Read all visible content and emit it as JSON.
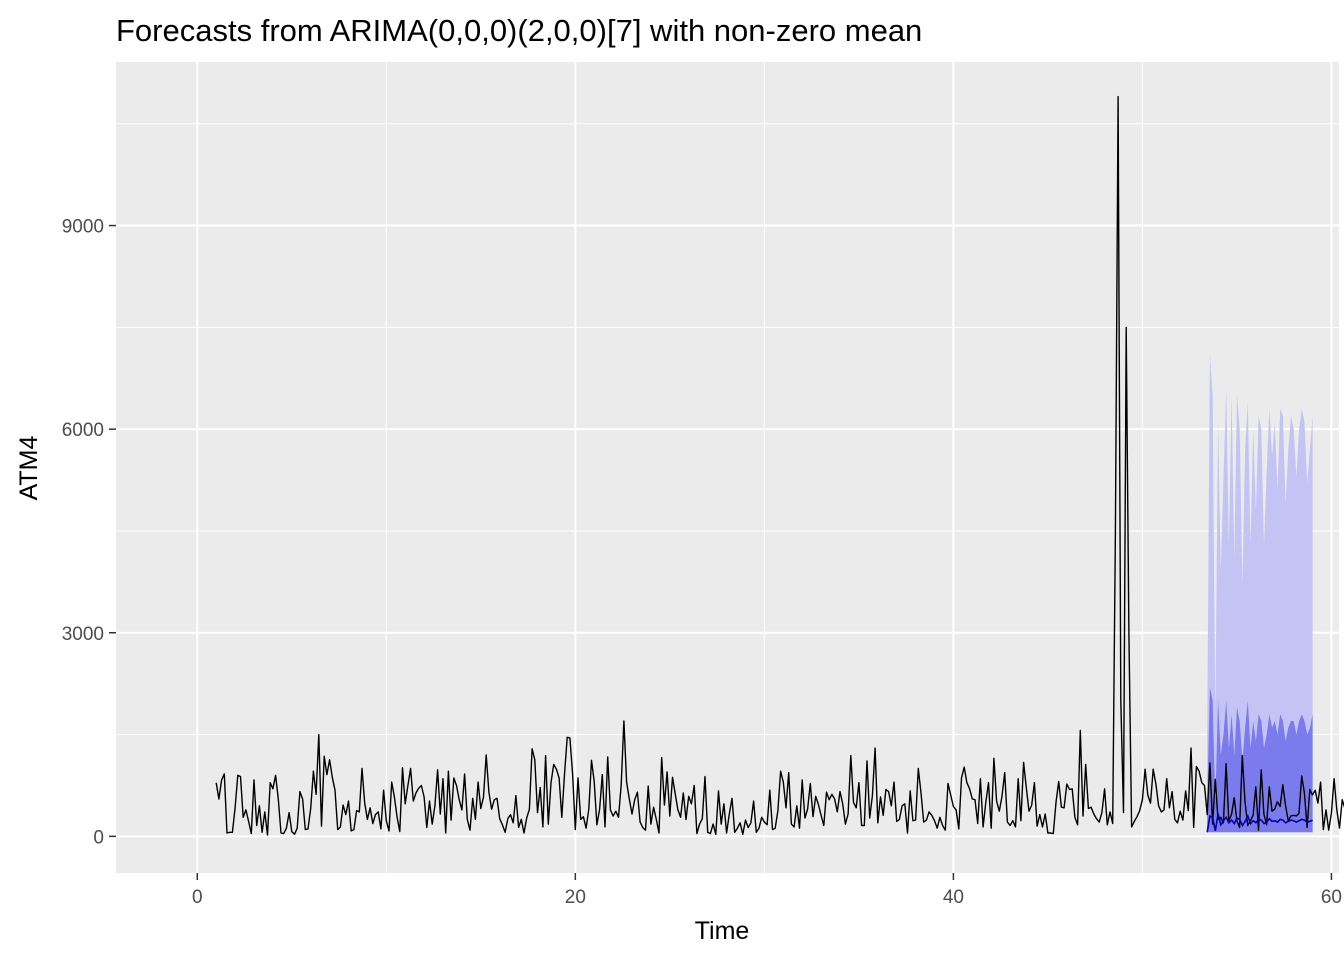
{
  "chart_data": {
    "type": "line",
    "title": "Forecasts from ARIMA(0,0,0)(2,0,0)[7] with non-zero mean",
    "xlabel": "Time",
    "ylabel": "ATM4",
    "xlim": [
      -4.3,
      60.4
    ],
    "ylim": [
      -540,
      11410
    ],
    "x_ticks": [
      0,
      20,
      40,
      60
    ],
    "x_tick_labels": [
      "0",
      "20",
      "40",
      "60"
    ],
    "y_ticks": [
      0,
      3000,
      6000,
      9000
    ],
    "y_tick_labels": [
      "0",
      "3000",
      "6000",
      "9000"
    ],
    "grid": true,
    "legend": "none",
    "frequency": 7,
    "history": {
      "start": 1.0,
      "values": [
        790,
        550,
        830,
        920,
        50,
        60,
        60,
        420,
        900,
        880,
        280,
        390,
        220,
        40,
        830,
        160,
        450,
        60,
        360,
        20,
        790,
        700,
        900,
        550,
        50,
        40,
        120,
        350,
        70,
        30,
        120,
        660,
        550,
        100,
        110,
        410,
        960,
        620,
        1500,
        150,
        1180,
        910,
        1130,
        870,
        680,
        100,
        140,
        460,
        320,
        520,
        80,
        100,
        380,
        360,
        1000,
        490,
        250,
        420,
        190,
        320,
        360,
        110,
        680,
        230,
        80,
        800,
        580,
        280,
        70,
        1010,
        480,
        750,
        1000,
        520,
        640,
        710,
        750,
        580,
        130,
        520,
        180,
        450,
        980,
        330,
        850,
        50,
        960,
        240,
        860,
        750,
        540,
        390,
        920,
        250,
        90,
        560,
        250,
        800,
        410,
        580,
        1200,
        650,
        400,
        540,
        560,
        260,
        170,
        60,
        260,
        320,
        200,
        600,
        130,
        250,
        50,
        270,
        400,
        1290,
        1130,
        350,
        720,
        140,
        1190,
        180,
        790,
        1060,
        990,
        860,
        280,
        910,
        1460,
        1450,
        920,
        100,
        860,
        250,
        290,
        120,
        400,
        1120,
        810,
        170,
        400,
        910,
        140,
        1170,
        390,
        300,
        370,
        280,
        760,
        1700,
        800,
        550,
        330,
        540,
        650,
        210,
        130,
        90,
        740,
        180,
        430,
        250,
        50,
        1160,
        460,
        950,
        300,
        870,
        630,
        390,
        280,
        640,
        250,
        590,
        480,
        750,
        40,
        180,
        260,
        880,
        60,
        40,
        180,
        30,
        670,
        180,
        480,
        50,
        330,
        560,
        60,
        120,
        200,
        30,
        240,
        130,
        200,
        520,
        60,
        120,
        280,
        210,
        170,
        680,
        100,
        120,
        380,
        960,
        800,
        420,
        940,
        180,
        140,
        450,
        120,
        830,
        270,
        400,
        780,
        290,
        590,
        470,
        310,
        160,
        650,
        540,
        620,
        550,
        360,
        660,
        480,
        180,
        330,
        1190,
        500,
        420,
        790,
        160,
        160,
        1110,
        270,
        600,
        1300,
        200,
        580,
        310,
        690,
        660,
        450,
        800,
        220,
        250,
        450,
        480,
        50,
        670,
        230,
        240,
        1000,
        640,
        210,
        240,
        360,
        310,
        230,
        120,
        280,
        160,
        90,
        780,
        610,
        440,
        390,
        110,
        860,
        1020,
        790,
        700,
        550,
        540,
        190,
        850,
        140,
        500,
        790,
        120,
        1150,
        520,
        370,
        590,
        940,
        210,
        160,
        230,
        140,
        850,
        230,
        1090,
        720,
        370,
        460,
        790,
        150,
        320,
        140,
        330,
        50,
        50,
        40,
        500,
        810,
        430,
        420,
        770,
        690,
        700,
        280,
        170,
        1560,
        300,
        1060,
        410,
        430,
        330,
        260,
        210,
        350,
        700,
        170,
        360,
        190,
        4500,
        10900,
        2000,
        350,
        7500,
        3000,
        140,
        220,
        290,
        380,
        540,
        990,
        610,
        490,
        990,
        770,
        450,
        360,
        390,
        850,
        420,
        660,
        250,
        200,
        370,
        240,
        670,
        380,
        1300,
        130,
        1030,
        960,
        790,
        750,
        320,
        1080,
        180,
        840,
        250,
        280,
        200,
        1070,
        230,
        320,
        570,
        230,
        130,
        1190,
        510,
        160,
        230,
        310,
        730,
        90,
        980,
        330,
        170,
        730,
        370,
        400,
        510,
        440,
        760,
        460,
        230,
        300,
        310,
        300,
        340,
        890,
        640,
        130,
        690,
        610,
        680,
        490,
        800,
        100,
        390,
        90,
        340,
        850,
        390,
        120,
        540,
        410,
        780,
        490,
        520,
        430,
        80,
        650,
        900,
        980,
        920,
        710,
        330,
        60,
        440,
        1090,
        960,
        310,
        690,
        290,
        410,
        800,
        800,
        310,
        780,
        240,
        100,
        600,
        300,
        280,
        770,
        140,
        470,
        120,
        520,
        560,
        200,
        90,
        280,
        480
      ]
    },
    "forecast": {
      "start": 53.43,
      "mean": [
        60,
        300,
        280,
        80,
        330,
        170,
        230,
        280,
        200,
        240,
        190,
        270,
        250,
        160,
        220,
        300,
        190,
        230,
        200,
        250,
        240,
        190,
        210,
        260,
        220,
        230,
        210,
        250,
        240,
        200,
        220,
        240,
        230,
        210,
        230,
        250,
        240,
        210,
        220,
        240
      ],
      "lo80": [
        60,
        60,
        60,
        60,
        60,
        60,
        60,
        60,
        60,
        60,
        60,
        60,
        60,
        60,
        60,
        60,
        60,
        60,
        60,
        60,
        60,
        60,
        60,
        60,
        60,
        60,
        60,
        60,
        60,
        60,
        60,
        60,
        60,
        60,
        60,
        60,
        60,
        60,
        60,
        60
      ],
      "hi80": [
        500,
        2200,
        2000,
        500,
        2000,
        1200,
        1500,
        2000,
        1300,
        1800,
        1200,
        1900,
        1700,
        1100,
        1600,
        2000,
        1300,
        1700,
        1400,
        1800,
        1700,
        1300,
        1500,
        1800,
        1600,
        1700,
        1500,
        1800,
        1700,
        1400,
        1600,
        1700,
        1700,
        1500,
        1700,
        1800,
        1700,
        1500,
        1600,
        1800
      ],
      "lo95": [
        60,
        60,
        60,
        60,
        60,
        60,
        60,
        60,
        60,
        60,
        60,
        60,
        60,
        60,
        60,
        60,
        60,
        60,
        60,
        60,
        60,
        60,
        60,
        60,
        60,
        60,
        60,
        60,
        60,
        60,
        60,
        60,
        60,
        60,
        60,
        60,
        60,
        60,
        60,
        60
      ],
      "hi95": [
        1500,
        7100,
        6500,
        1800,
        6100,
        3900,
        5300,
        6600,
        4300,
        6500,
        4100,
        6500,
        6000,
        3700,
        5700,
        6400,
        4300,
        6000,
        4800,
        6200,
        6000,
        4300,
        5400,
        6300,
        5600,
        6100,
        5100,
        6300,
        6200,
        4900,
        5700,
        6200,
        6000,
        5300,
        6000,
        6300,
        6100,
        5200,
        5700,
        6200
      ]
    },
    "colors": {
      "panel": "#ebebeb",
      "grid": "#ffffff",
      "history_line": "#000000",
      "forecast_line": "#0000aa",
      "band80": "#7b7bee",
      "band95": "#c4c4f4",
      "tick": "#333333"
    }
  }
}
